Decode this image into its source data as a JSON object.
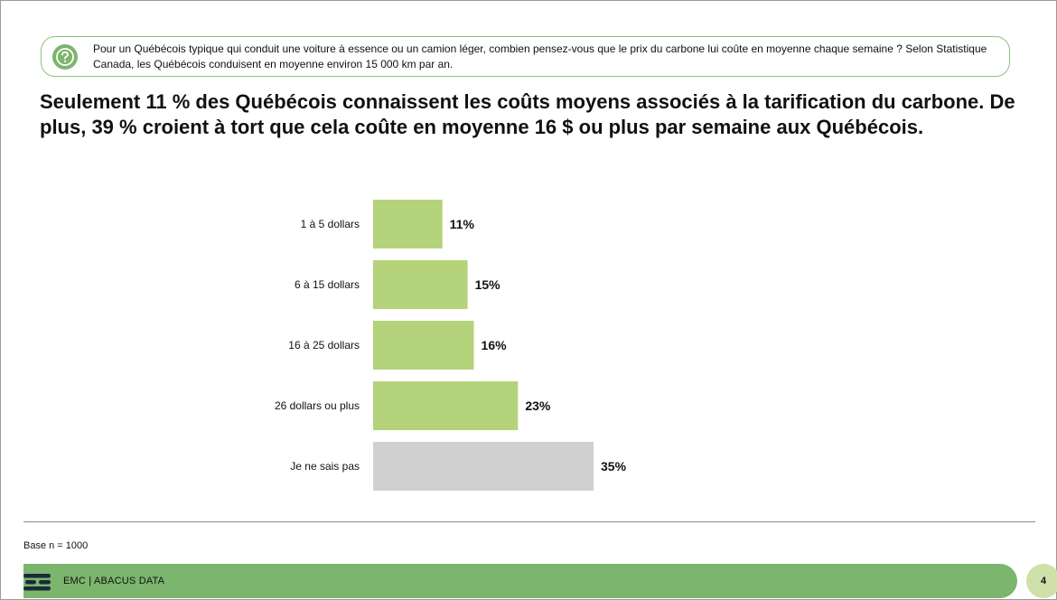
{
  "question": {
    "icon": "question-circle-icon",
    "text": "Pour un Québécois typique qui conduit une voiture à essence ou un camion léger, combien pensez-vous que le prix du carbone lui coûte en moyenne chaque semaine ? Selon Statistique Canada, les Québécois conduisent en moyenne environ 15 000 km par an."
  },
  "headline": "Seulement 11 % des Québécois connaissent les coûts moyens associés à la tarification du carbone. De plus, 39 % croient à tort que cela coûte en moyenne 16 $ ou plus par semaine aux Québécois.",
  "chart_data": {
    "type": "bar",
    "orientation": "horizontal",
    "categories": [
      "1 à 5 dollars",
      "6 à 15 dollars",
      "16 à 25 dollars",
      "26 dollars ou plus",
      "Je ne sais pas"
    ],
    "values": [
      11,
      15,
      16,
      23,
      35
    ],
    "value_labels": [
      "11%",
      "15%",
      "16%",
      "23%",
      "35%"
    ],
    "unit": "%",
    "colors": [
      "#b5d37a",
      "#b5d37a",
      "#b5d37a",
      "#b5d37a",
      "#cfd0cf"
    ],
    "xlim": [
      0,
      35
    ],
    "grid": false,
    "legend": "none"
  },
  "base_note": "Base n = 1000",
  "footer": {
    "logo": "emc-logo-icon",
    "text": "EMC  |  ABACUS DATA",
    "page_number": "4"
  }
}
